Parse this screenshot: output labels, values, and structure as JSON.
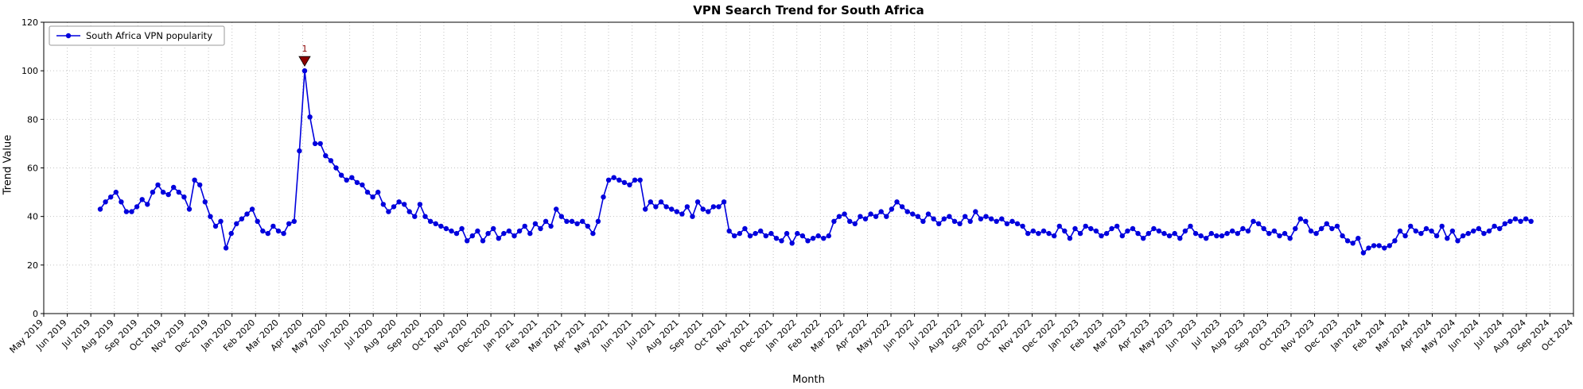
{
  "chart_data": {
    "type": "line",
    "title": "VPN Search Trend for South Africa",
    "xlabel": "Month",
    "ylabel": "Trend Value",
    "ylim": [
      0,
      120
    ],
    "yticks": [
      0,
      20,
      40,
      60,
      80,
      100,
      120
    ],
    "grid": "dotted",
    "x_tick_labels": [
      "May 2019",
      "Jun 2019",
      "Jul 2019",
      "Aug 2019",
      "Sep 2019",
      "Oct 2019",
      "Nov 2019",
      "Dec 2019",
      "Jan 2020",
      "Feb 2020",
      "Mar 2020",
      "Apr 2020",
      "May 2020",
      "Jun 2020",
      "Jul 2020",
      "Aug 2020",
      "Sep 2020",
      "Oct 2020",
      "Nov 2020",
      "Dec 2020",
      "Jan 2021",
      "Feb 2021",
      "Mar 2021",
      "Apr 2021",
      "May 2021",
      "Jun 2021",
      "Jul 2021",
      "Aug 2021",
      "Sep 2021",
      "Oct 2021",
      "Nov 2021",
      "Dec 2021",
      "Jan 2022",
      "Feb 2022",
      "Mar 2022",
      "Apr 2022",
      "May 2022",
      "Jun 2022",
      "Jul 2022",
      "Aug 2022",
      "Sep 2022",
      "Oct 2022",
      "Nov 2022",
      "Dec 2022",
      "Jan 2023",
      "Feb 2023",
      "Mar 2023",
      "Apr 2023",
      "May 2023",
      "Jun 2023",
      "Jul 2023",
      "Aug 2023",
      "Sep 2023",
      "Oct 2023",
      "Nov 2023",
      "Dec 2023",
      "Jan 2024",
      "Feb 2024",
      "Mar 2024",
      "Apr 2024",
      "May 2024",
      "Jun 2024",
      "Jul 2024",
      "Aug 2024",
      "Sep 2024",
      "Oct 2024"
    ],
    "legend": {
      "position": "upper-left",
      "entries": [
        "South Africa VPN popularity"
      ]
    },
    "series": [
      {
        "name": "South Africa VPN popularity",
        "color": "#0000dd",
        "marker": "circle",
        "x_start_month_index": 2.4,
        "x_end_month_index": 63.2,
        "values": [
          43,
          46,
          48,
          50,
          46,
          42,
          42,
          44,
          47,
          45,
          50,
          53,
          50,
          49,
          52,
          50,
          48,
          43,
          55,
          53,
          46,
          40,
          36,
          38,
          27,
          33,
          37,
          39,
          41,
          43,
          38,
          34,
          33,
          36,
          34,
          33,
          37,
          38,
          67,
          100,
          81,
          70,
          70,
          65,
          63,
          60,
          57,
          55,
          56,
          54,
          53,
          50,
          48,
          50,
          45,
          42,
          44,
          46,
          45,
          42,
          40,
          45,
          40,
          38,
          37,
          36,
          35,
          34,
          33,
          35,
          30,
          32,
          34,
          30,
          33,
          35,
          31,
          33,
          34,
          32,
          34,
          36,
          33,
          37,
          35,
          38,
          36,
          43,
          40,
          38,
          38,
          37,
          38,
          36,
          33,
          38,
          48,
          55,
          56,
          55,
          54,
          53,
          55,
          55,
          43,
          46,
          44,
          46,
          44,
          43,
          42,
          41,
          44,
          40,
          46,
          43,
          42,
          44,
          44,
          46,
          34,
          32,
          33,
          35,
          32,
          33,
          34,
          32,
          33,
          31,
          30,
          33,
          29,
          33,
          32,
          30,
          31,
          32,
          31,
          32,
          38,
          40,
          41,
          38,
          37,
          40,
          39,
          41,
          40,
          42,
          40,
          43,
          46,
          44,
          42,
          41,
          40,
          38,
          41,
          39,
          37,
          39,
          40,
          38,
          37,
          40,
          38,
          42,
          39,
          40,
          39,
          38,
          39,
          37,
          38,
          37,
          36,
          33,
          34,
          33,
          34,
          33,
          32,
          36,
          34,
          31,
          35,
          33,
          36,
          35,
          34,
          32,
          33,
          35,
          36,
          32,
          34,
          35,
          33,
          31,
          33,
          35,
          34,
          33,
          32,
          33,
          31,
          34,
          36,
          33,
          32,
          31,
          33,
          32,
          32,
          33,
          34,
          33,
          35,
          34,
          38,
          37,
          35,
          33,
          34,
          32,
          33,
          31,
          35,
          39,
          38,
          34,
          33,
          35,
          37,
          35,
          36,
          32,
          30,
          29,
          31,
          25,
          27,
          28,
          28,
          27,
          28,
          30,
          34,
          32,
          36,
          34,
          33,
          35,
          34,
          32,
          36,
          31,
          34,
          30,
          32,
          33,
          34,
          35,
          33,
          34,
          36,
          35,
          37,
          38,
          39,
          38,
          39,
          38
        ]
      }
    ],
    "annotations": [
      {
        "label": "1",
        "color": "#8b0000",
        "marker": "triangle-down",
        "target": "max"
      }
    ]
  }
}
